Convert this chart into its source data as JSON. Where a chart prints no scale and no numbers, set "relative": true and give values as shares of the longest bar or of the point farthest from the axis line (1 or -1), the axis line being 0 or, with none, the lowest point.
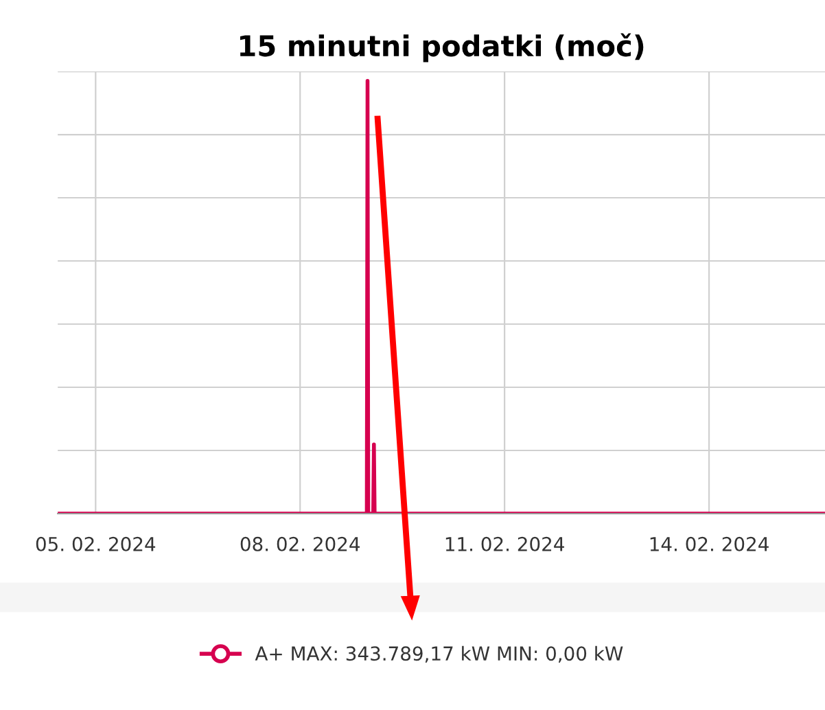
{
  "chart_data": {
    "type": "line",
    "title": "15 minutni podatki (moč)",
    "relative": true,
    "grid": true,
    "legend": "bottom",
    "marker": "none",
    "line_style": "solid",
    "x": [
      "2024-02-04T10:45",
      "2024-02-08T23:30",
      "2024-02-08T23:45",
      "2024-02-09T00:00",
      "2024-02-09T01:45",
      "2024-02-09T02:00",
      "2024-02-09T02:15",
      "2024-02-15T16:45"
    ],
    "series": [
      {
        "name": "A+ MAX: 343.789,17 kW MIN: 0,00 kW",
        "color": "#d6004f",
        "values": [
          0,
          0,
          1,
          0,
          0,
          0.16,
          0,
          0
        ]
      }
    ],
    "xlim": [
      "2024-02-04T10:40",
      "2024-02-15T16:50"
    ],
    "xticks": [
      {
        "value": "2024-02-05",
        "label": "05. 02. 2024"
      },
      {
        "value": "2024-02-08",
        "label": "08. 02. 2024"
      },
      {
        "value": "2024-02-11",
        "label": "11. 02. 2024"
      },
      {
        "value": "2024-02-14",
        "label": "14. 02. 2024"
      }
    ]
  }
}
